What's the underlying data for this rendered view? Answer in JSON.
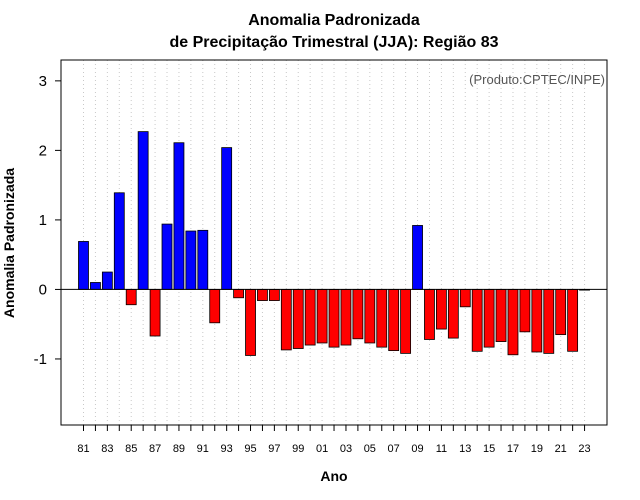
{
  "chart_data": {
    "type": "bar",
    "title": [
      "Anomalia Padronizada",
      "de Precipitação Trimestral (JJA): Região 83"
    ],
    "xlabel": "Ano",
    "ylabel": "Anomalia Padronizada",
    "annotation": "(Produto:CPTEC/INPE)",
    "ylim": [
      -1.95,
      3.3
    ],
    "yticks": [
      -1,
      0,
      1,
      2,
      3
    ],
    "grid": "vertical-dotted",
    "colors": {
      "positive": "#0000ff",
      "negative": "#ff0000",
      "outline": "#000000",
      "grid": "#c8c8c8"
    },
    "x_tick_labels": [
      "81",
      "83",
      "85",
      "87",
      "89",
      "91",
      "93",
      "95",
      "97",
      "99",
      "01",
      "03",
      "05",
      "07",
      "09",
      "11",
      "13",
      "15",
      "17",
      "19",
      "21",
      "23"
    ],
    "categories": [
      "1981",
      "1982",
      "1983",
      "1984",
      "1985",
      "1986",
      "1987",
      "1988",
      "1989",
      "1990",
      "1991",
      "1992",
      "1993",
      "1994",
      "1995",
      "1996",
      "1997",
      "1998",
      "1999",
      "2000",
      "2001",
      "2002",
      "2003",
      "2004",
      "2005",
      "2006",
      "2007",
      "2008",
      "2009",
      "2010",
      "2011",
      "2012",
      "2013",
      "2014",
      "2015",
      "2016",
      "2017",
      "2018",
      "2019",
      "2020",
      "2021",
      "2022",
      "2023"
    ],
    "values": [
      0.69,
      0.1,
      0.25,
      1.39,
      -0.22,
      2.27,
      -0.67,
      0.94,
      2.11,
      0.84,
      0.85,
      -0.48,
      2.04,
      -0.12,
      -0.95,
      -0.16,
      -0.16,
      -0.87,
      -0.85,
      -0.8,
      -0.77,
      -0.83,
      -0.8,
      -0.71,
      -0.77,
      -0.83,
      -0.88,
      -0.92,
      0.92,
      -0.72,
      -0.57,
      -0.7,
      -0.25,
      -0.89,
      -0.83,
      -0.75,
      -0.94,
      -0.61,
      -0.9,
      -0.92,
      -0.65,
      -0.89,
      -0.01
    ]
  }
}
